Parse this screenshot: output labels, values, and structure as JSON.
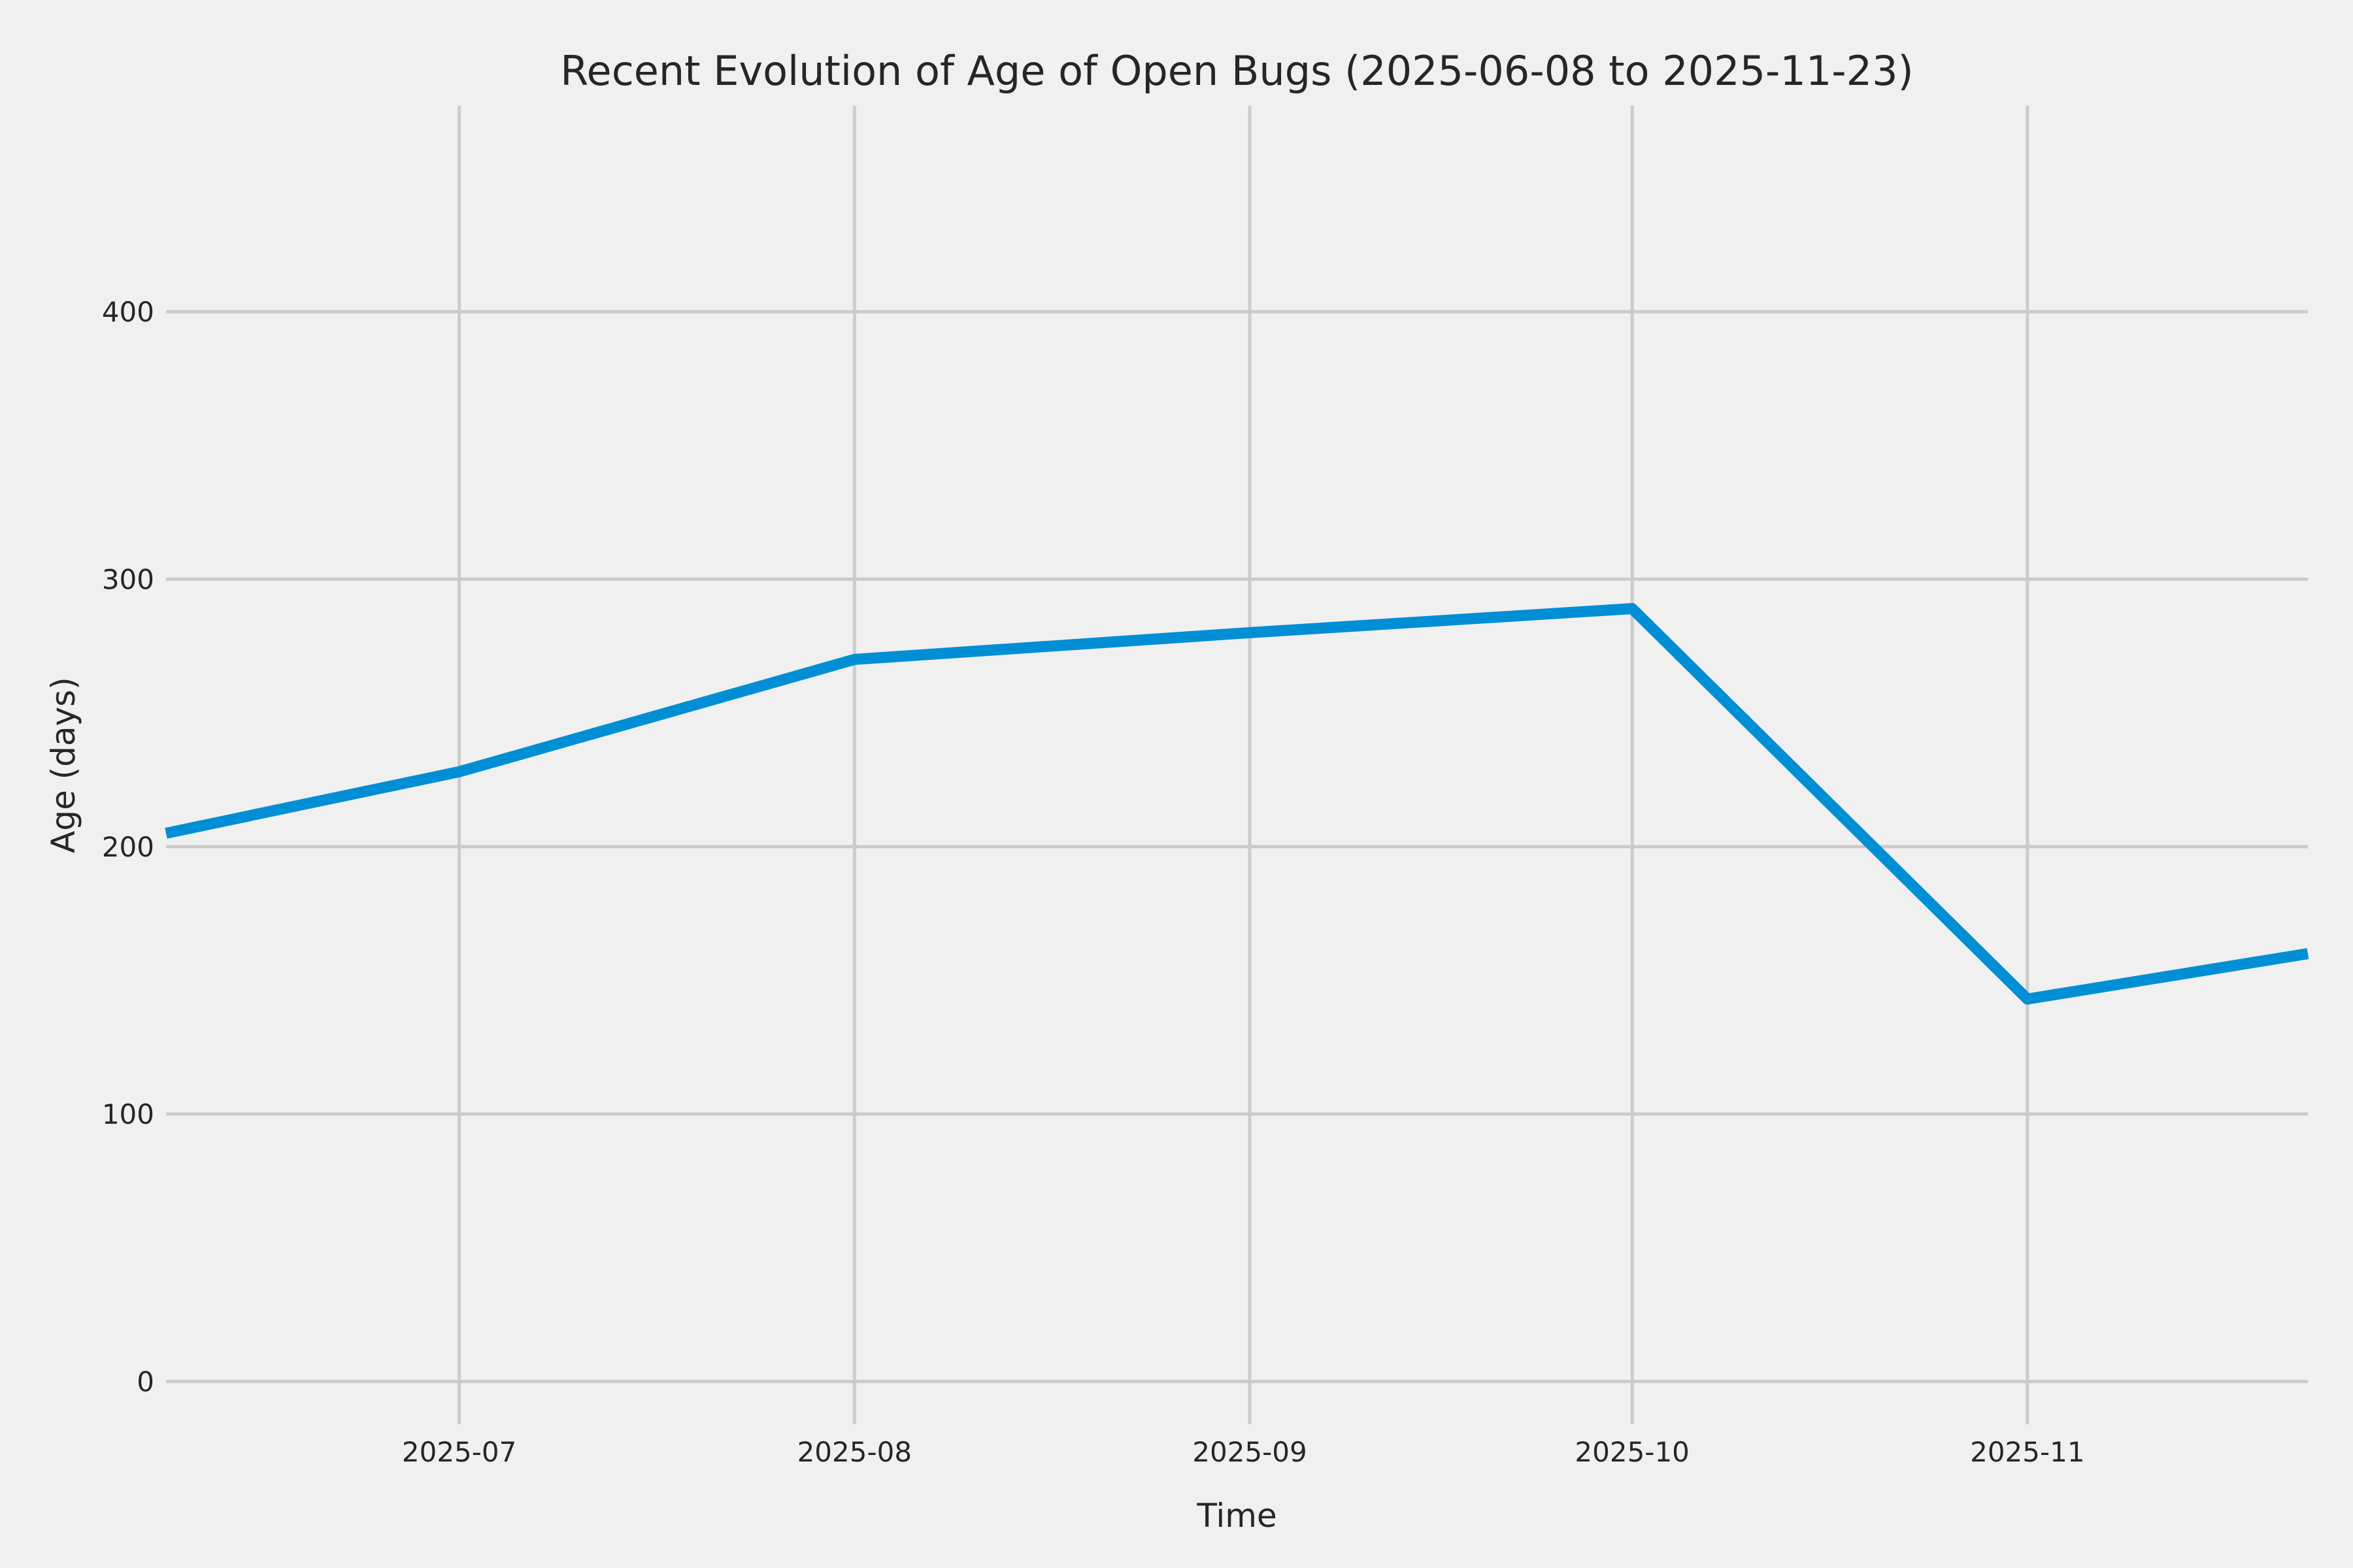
{
  "chart_data": {
    "type": "line",
    "title": "Recent Evolution of Age of Open Bugs (2025-06-08 to 2025-11-23)",
    "xlabel": "Time",
    "ylabel": "Age (days)",
    "date_range": {
      "start": "2025-06-08",
      "end": "2025-11-23"
    },
    "x_dates": [
      "2025-06-08",
      "2025-07-01",
      "2025-08-01",
      "2025-09-01",
      "2025-10-01",
      "2025-11-01",
      "2025-11-23"
    ],
    "x_days": [
      0,
      23,
      54,
      85,
      115,
      146,
      168
    ],
    "values": [
      205,
      228,
      270,
      280,
      289,
      143,
      160
    ],
    "xlim_days": [
      0,
      168
    ],
    "ylim": [
      -16,
      477
    ],
    "yticks": {
      "values": [
        0,
        100,
        200,
        300,
        400
      ],
      "labels": [
        "0",
        "100",
        "200",
        "300",
        "400"
      ]
    },
    "xticks": {
      "days": [
        23,
        54,
        85,
        115,
        146
      ],
      "labels": [
        "2025-07",
        "2025-08",
        "2025-09",
        "2025-10",
        "2025-11"
      ]
    },
    "grid": true,
    "legend": false,
    "colors": {
      "line": "#008fd5",
      "background": "#f0f0f0",
      "grid": "#cbcbcb",
      "text": "#262626"
    }
  }
}
